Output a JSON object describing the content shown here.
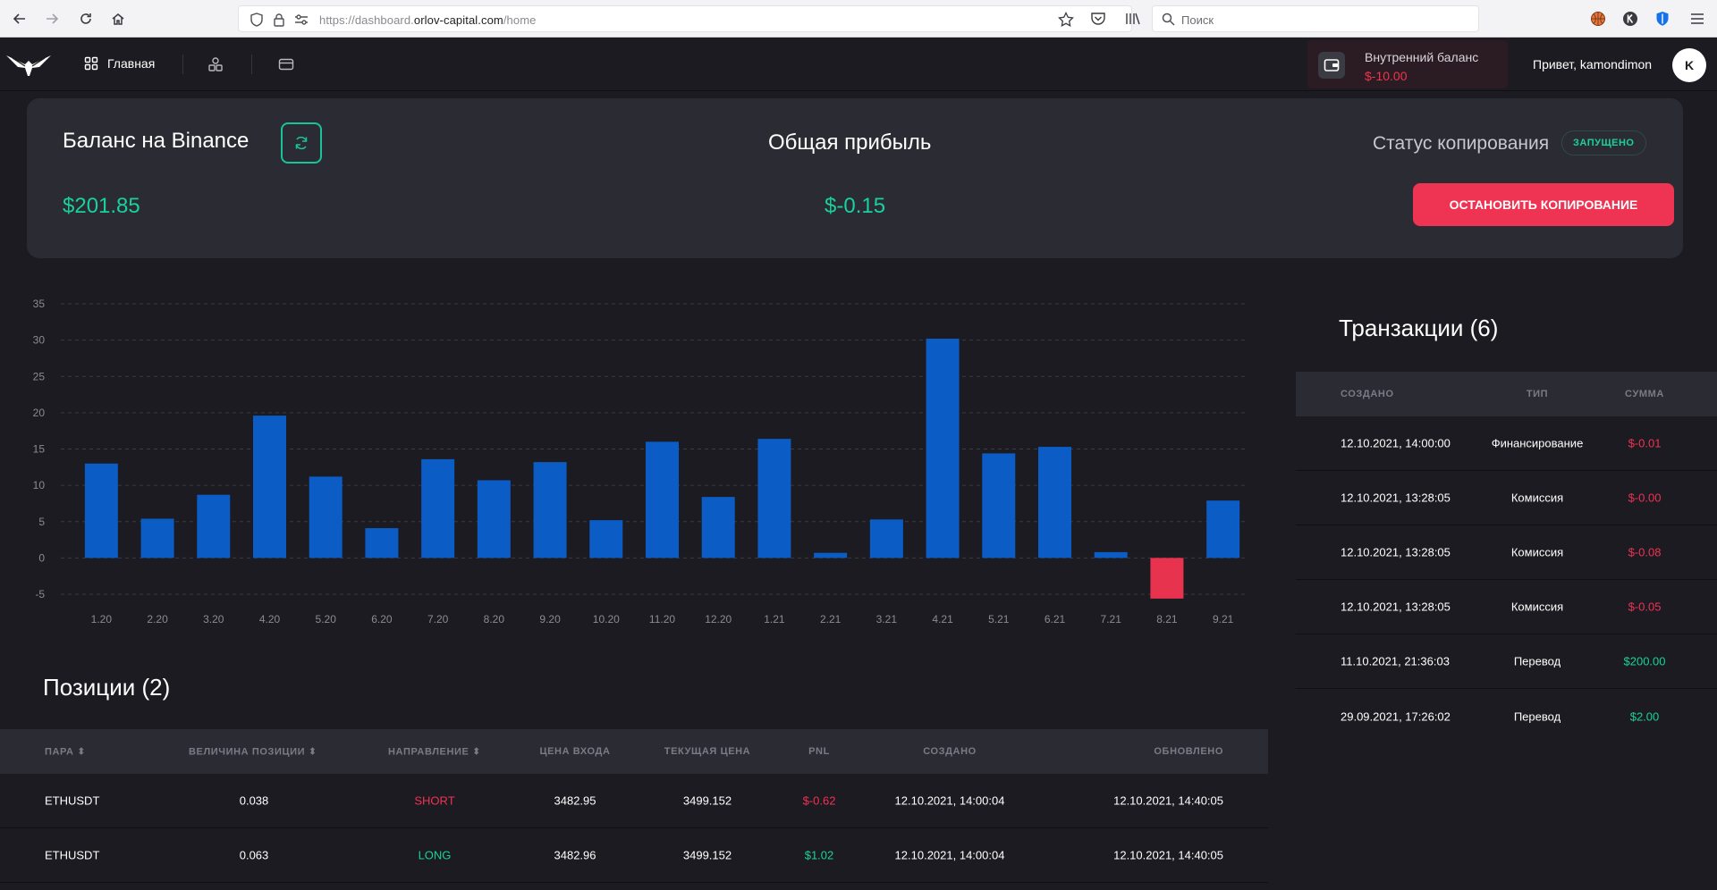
{
  "browser": {
    "url_prefix": "https://dashboard.",
    "url_host": "orlov-capital.com",
    "url_path": "/home",
    "search_placeholder": "Поиск"
  },
  "header": {
    "home_label": "Главная",
    "balance_label": "Внутренний баланс",
    "balance_value": "$-10.00",
    "greeting": "Привет, kamondimon",
    "avatar_letter": "K"
  },
  "summary": {
    "binance_title": "Баланс на Binance",
    "binance_value": "$201.85",
    "profit_title": "Общая прибыль",
    "profit_value": "$-0.15",
    "status_label": "Статус копирования",
    "status_badge": "ЗАПУЩЕНО",
    "stop_button": "ОСТАНОВИТЬ КОПИРОВАНИЕ"
  },
  "chart_data": {
    "type": "bar",
    "categories": [
      "1.20",
      "2.20",
      "3.20",
      "4.20",
      "5.20",
      "6.20",
      "7.20",
      "8.20",
      "9.20",
      "10.20",
      "11.20",
      "12.20",
      "1.21",
      "2.21",
      "3.21",
      "4.21",
      "5.21",
      "6.21",
      "7.21",
      "8.21",
      "9.21"
    ],
    "values": [
      13,
      5.4,
      8.7,
      19.6,
      11.2,
      4.1,
      13.6,
      10.7,
      13.2,
      5.2,
      16,
      8.4,
      16.4,
      0.7,
      5.3,
      30.2,
      14.4,
      15.3,
      0.8,
      -5.6,
      7.9
    ],
    "yticks": [
      35,
      30,
      25,
      20,
      15,
      10,
      5,
      0,
      -5
    ],
    "ylim": [
      -5,
      35
    ],
    "grid": true,
    "colors": {
      "positive": "#0b5cc5",
      "negative": "#e8334f"
    }
  },
  "positions": {
    "title": "Позиции (2)",
    "columns": [
      "ПАРА",
      "ВЕЛИЧИНА ПОЗИЦИИ",
      "НАПРАВЛЕНИЕ",
      "ЦЕНА ВХОДА",
      "ТЕКУЩАЯ ЦЕНА",
      "PNL",
      "СОЗДАНО",
      "ОБНОВЛЕНО"
    ],
    "rows": [
      {
        "pair": "ETHUSDT",
        "size": "0.038",
        "direction": "SHORT",
        "entry": "3482.95",
        "current": "3499.152",
        "pnl": "$-0.62",
        "created": "12.10.2021, 14:00:04",
        "updated": "12.10.2021, 14:40:05"
      },
      {
        "pair": "ETHUSDT",
        "size": "0.063",
        "direction": "LONG",
        "entry": "3482.96",
        "current": "3499.152",
        "pnl": "$1.02",
        "created": "12.10.2021, 14:00:04",
        "updated": "12.10.2021, 14:40:05"
      }
    ]
  },
  "transactions": {
    "title": "Транзакции (6)",
    "columns": [
      "СОЗДАНО",
      "ТИП",
      "СУММА"
    ],
    "rows": [
      {
        "created": "12.10.2021, 14:00:00",
        "type": "Финансирование",
        "amount": "$-0.01"
      },
      {
        "created": "12.10.2021, 13:28:05",
        "type": "Комиссия",
        "amount": "$-0.00"
      },
      {
        "created": "12.10.2021, 13:28:05",
        "type": "Комиссия",
        "amount": "$-0.08"
      },
      {
        "created": "12.10.2021, 13:28:05",
        "type": "Комиссия",
        "amount": "$-0.05"
      },
      {
        "created": "11.10.2021, 21:36:03",
        "type": "Перевод",
        "amount": "$200.00"
      },
      {
        "created": "29.09.2021, 17:26:02",
        "type": "Перевод",
        "amount": "$2.00"
      }
    ]
  }
}
